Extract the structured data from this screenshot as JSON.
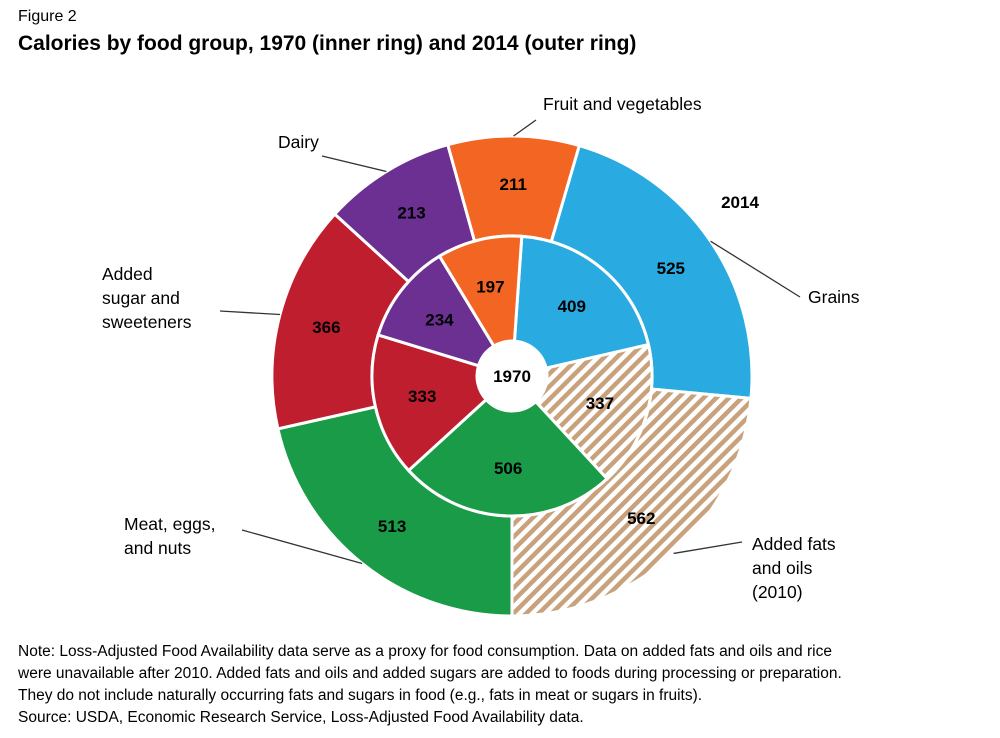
{
  "figure_label": "Figure 2",
  "title": "Calories by food group, 1970 (inner ring) and 2014 (outer ring)",
  "chart_data": {
    "type": "donut",
    "title": "Calories by food group, 1970 (inner ring) and 2014 (outer ring)",
    "center_label": "1970",
    "outer_ring_label": "2014",
    "categories": [
      {
        "name": "Grains",
        "label_lines": [
          "Grains"
        ],
        "color": "#29abe2",
        "pattern": "solid"
      },
      {
        "name": "Added fats and oils (2010)",
        "label_lines": [
          "Added fats",
          "and oils",
          "(2010)"
        ],
        "color": "#c7a27c",
        "pattern": "hatch"
      },
      {
        "name": "Meat, eggs, and nuts",
        "label_lines": [
          "Meat, eggs,",
          "and nuts"
        ],
        "color": "#1a9b48",
        "pattern": "solid"
      },
      {
        "name": "Added sugar and sweeteners",
        "label_lines": [
          "Added",
          "sugar and",
          "sweeteners"
        ],
        "color": "#be1e2d",
        "pattern": "solid"
      },
      {
        "name": "Dairy",
        "label_lines": [
          "Dairy"
        ],
        "color": "#6b3092",
        "pattern": "solid"
      },
      {
        "name": "Fruit and vegetables",
        "label_lines": [
          "Fruit and vegetables"
        ],
        "color": "#f26522",
        "pattern": "solid"
      }
    ],
    "series": [
      {
        "name": "1970",
        "ring": "inner",
        "values": [
          409,
          337,
          506,
          333,
          234,
          197
        ]
      },
      {
        "name": "2014",
        "ring": "outer",
        "values": [
          525,
          562,
          513,
          366,
          213,
          211
        ]
      }
    ]
  },
  "notes": [
    "Note: Loss-Adjusted Food Availability data serve as a proxy for food consumption. Data on added fats and oils and rice",
    "were unavailable after 2010. Added fats and oils and added sugars are added to foods during processing or preparation.",
    "They do not include naturally occurring fats and sugars in food (e.g., fats in meat or sugars in fruits).",
    "Source:  USDA, Economic Research Service, Loss-Adjusted Food Availability data."
  ]
}
